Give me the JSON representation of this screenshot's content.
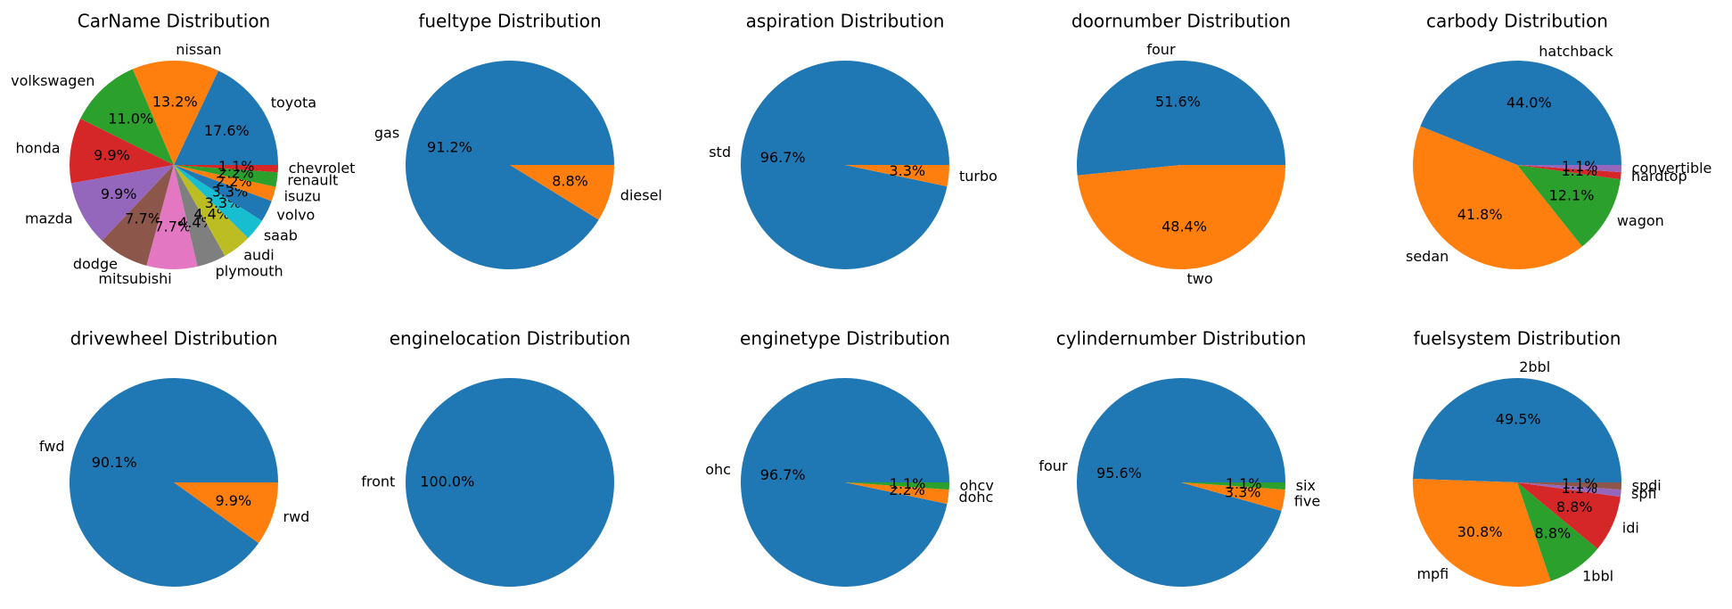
{
  "colors": [
    "#1f77b4",
    "#ff7f0e",
    "#2ca02c",
    "#d62728",
    "#9467bd",
    "#8c564b",
    "#e377c2",
    "#7f7f7f",
    "#bcbd22",
    "#17becf"
  ],
  "chart_data": [
    {
      "type": "pie",
      "title": "CarName Distribution",
      "labels": [
        "toyota",
        "nissan",
        "volkswagen",
        "honda",
        "mazda",
        "dodge",
        "mitsubishi",
        "plymouth",
        "audi",
        "saab",
        "volvo",
        "isuzu",
        "renault",
        "chevrolet"
      ],
      "values": [
        17.6,
        13.2,
        11.0,
        9.9,
        9.9,
        7.7,
        7.7,
        4.4,
        4.4,
        3.3,
        3.3,
        2.2,
        2.2,
        1.1
      ],
      "pct_labels": [
        "17.6%",
        "13.2%",
        "11.0%",
        "9.9%",
        "9.9%",
        "7.7%",
        "7.7%",
        "4.4%",
        "4.4%",
        "3.3%",
        "3.3%",
        "2.2%",
        "2.2%",
        "1.1%"
      ],
      "colors": [
        "#1f77b4",
        "#ff7f0e",
        "#2ca02c",
        "#d62728",
        "#9467bd",
        "#8c564b",
        "#e377c2",
        "#7f7f7f",
        "#bcbd22",
        "#17becf",
        "#1f77b4",
        "#ff7f0e",
        "#2ca02c",
        "#d62728"
      ]
    },
    {
      "type": "pie",
      "title": "fueltype Distribution",
      "labels": [
        "gas",
        "diesel"
      ],
      "values": [
        91.2,
        8.8
      ],
      "pct_labels": [
        "91.2%",
        "8.8%"
      ]
    },
    {
      "type": "pie",
      "title": "aspiration Distribution",
      "labels": [
        "std",
        "turbo"
      ],
      "values": [
        96.7,
        3.3
      ],
      "pct_labels": [
        "96.7%",
        "3.3%"
      ]
    },
    {
      "type": "pie",
      "title": "doornumber Distribution",
      "labels": [
        "four",
        "two"
      ],
      "values": [
        51.6,
        48.4
      ],
      "pct_labels": [
        "51.6%",
        "48.4%"
      ]
    },
    {
      "type": "pie",
      "title": "carbody Distribution",
      "labels": [
        "hatchback",
        "sedan",
        "wagon",
        "hardtop",
        "convertible"
      ],
      "values": [
        44.0,
        41.8,
        12.1,
        1.1,
        1.1
      ],
      "pct_labels": [
        "44.0%",
        "41.8%",
        "12.1%",
        "1.1%",
        "1.1%"
      ]
    },
    {
      "type": "pie",
      "title": "drivewheel Distribution",
      "labels": [
        "fwd",
        "rwd"
      ],
      "values": [
        90.1,
        9.9
      ],
      "pct_labels": [
        "90.1%",
        "9.9%"
      ]
    },
    {
      "type": "pie",
      "title": "enginelocation Distribution",
      "labels": [
        "front"
      ],
      "values": [
        100.0
      ],
      "pct_labels": [
        "100.0%"
      ]
    },
    {
      "type": "pie",
      "title": "enginetype Distribution",
      "labels": [
        "ohc",
        "dohc",
        "ohcv"
      ],
      "values": [
        96.7,
        2.2,
        1.1
      ],
      "pct_labels": [
        "96.7%",
        "2.2%",
        "1.1%"
      ]
    },
    {
      "type": "pie",
      "title": "cylindernumber Distribution",
      "labels": [
        "four",
        "five",
        "six"
      ],
      "values": [
        95.6,
        3.3,
        1.1
      ],
      "pct_labels": [
        "95.6%",
        "3.3%",
        "1.1%"
      ]
    },
    {
      "type": "pie",
      "title": "fuelsystem Distribution",
      "labels": [
        "2bbl",
        "mpfi",
        "1bbl",
        "idi",
        "spfi",
        "spdi"
      ],
      "values": [
        49.5,
        30.8,
        8.8,
        8.8,
        1.1,
        1.1
      ],
      "pct_labels": [
        "49.5%",
        "30.8%",
        "8.8%",
        "8.8%",
        "1.1%",
        "1.1%"
      ]
    }
  ]
}
